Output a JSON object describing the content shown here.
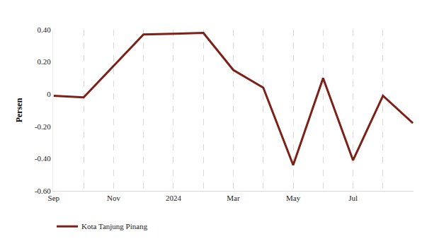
{
  "chart_data": {
    "type": "line",
    "y_label": "Persen",
    "categories": [
      "Sep",
      null,
      "Nov",
      null,
      "2024",
      null,
      "Mar",
      null,
      "May",
      null,
      "Jul",
      null,
      null
    ],
    "series": [
      {
        "name": "Kota Tanjung Pinang",
        "color": "#7b2118",
        "values": [
          -0.01,
          -0.02,
          0.175,
          0.37,
          0.375,
          0.38,
          0.15,
          0.04,
          -0.44,
          0.1,
          -0.41,
          -0.01,
          -0.18
        ]
      }
    ],
    "ylim": [
      -0.6,
      0.4
    ],
    "yticks": [
      {
        "value": -0.6,
        "label": "-0.60"
      },
      {
        "value": -0.4,
        "label": "-0.40"
      },
      {
        "value": -0.2,
        "label": "-0.20"
      },
      0,
      {
        "value": 0.2,
        "label": "0.20"
      },
      {
        "value": 0.4,
        "label": "0.40"
      }
    ],
    "grid": true,
    "legend": "bottom-left"
  }
}
